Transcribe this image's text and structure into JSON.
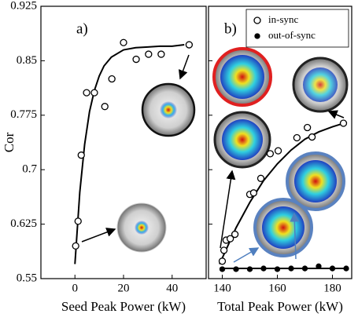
{
  "chart_data": [
    {
      "type": "scatter",
      "panel_label": "a)",
      "xlabel": "Seed Peak Power (kW)",
      "ylabel": "Cor",
      "xlim": [
        -14,
        54
      ],
      "xticks": [
        0,
        20,
        40
      ],
      "ylim": [
        0.55,
        0.925
      ],
      "yticks": [
        0.55,
        0.625,
        0.7,
        0.775,
        0.85,
        0.925
      ],
      "series": [
        {
          "name": "in-sync",
          "style": "open",
          "color": "#000000",
          "x": [
            0.3,
            1.3,
            2.6,
            4.8,
            8,
            12.3,
            15.2,
            20,
            25.2,
            30.3,
            35.5,
            47
          ],
          "values": [
            0.595,
            0.629,
            0.72,
            0.806,
            0.806,
            0.787,
            0.825,
            0.875,
            0.852,
            0.859,
            0.859,
            0.872
          ]
        },
        {
          "style": "line",
          "color": "#000000",
          "x": [
            0,
            2,
            4,
            6,
            8,
            10,
            12,
            15,
            20,
            25,
            30,
            35,
            40,
            45
          ],
          "values": [
            0.57,
            0.669,
            0.735,
            0.78,
            0.809,
            0.829,
            0.843,
            0.855,
            0.865,
            0.868,
            0.869,
            0.87,
            0.87,
            0.872
          ]
        }
      ]
    },
    {
      "type": "scatter",
      "panel_label": "b)",
      "xlabel": "Total Peak Power (kW)",
      "xlim": [
        135,
        187
      ],
      "xticks": [
        140,
        160,
        180
      ],
      "ylim": [
        0.55,
        0.925
      ],
      "legend": "upper right",
      "series": [
        {
          "name": "in-sync",
          "style": "open",
          "color": "#000000",
          "x": [
            140,
            140.6,
            141.4,
            142.9,
            144.6,
            150,
            151.4,
            154,
            157.4,
            160.3,
            167.1,
            170.9,
            172.6,
            184
          ],
          "values": [
            0.574,
            0.589,
            0.603,
            0.605,
            0.611,
            0.666,
            0.668,
            0.688,
            0.722,
            0.726,
            0.744,
            0.758,
            0.745,
            0.764
          ]
        },
        {
          "name": "out-of-sync",
          "style": "filled",
          "color": "#000000",
          "x": [
            140,
            145,
            150,
            155,
            160,
            165,
            170,
            175,
            180,
            185
          ],
          "values": [
            0.563,
            0.563,
            0.563,
            0.564,
            0.563,
            0.564,
            0.564,
            0.567,
            0.564,
            0.564
          ]
        },
        {
          "style": "line",
          "color": "#000000",
          "x": [
            139,
            145,
            150,
            155,
            160,
            165,
            170,
            175,
            180,
            185
          ],
          "values": [
            0.57,
            0.62,
            0.655,
            0.685,
            0.708,
            0.727,
            0.742,
            0.752,
            0.759,
            0.765
          ]
        },
        {
          "style": "line",
          "color": "#000000",
          "x": [
            139,
            185
          ],
          "values": [
            0.564,
            0.564
          ]
        }
      ]
    }
  ]
}
